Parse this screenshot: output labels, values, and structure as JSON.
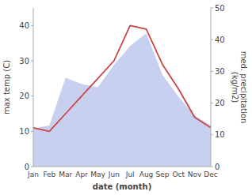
{
  "chart_data": {
    "type": "line",
    "categories": [
      "Jan",
      "Feb",
      "Mar",
      "Apr",
      "May",
      "Jun",
      "Jul",
      "Aug",
      "Sep",
      "Oct",
      "Nov",
      "Dec"
    ],
    "series": [
      {
        "type": "area",
        "axis": "y2",
        "color": "#c8d0f0",
        "values": [
          12,
          13,
          28,
          26,
          25,
          32,
          38,
          42,
          29,
          22,
          16,
          13
        ]
      },
      {
        "type": "line",
        "color": "#cc4444",
        "values": [
          11,
          10,
          15,
          20,
          25,
          30,
          40,
          39,
          29,
          22,
          14,
          11
        ]
      }
    ],
    "xlabel": "date (month)",
    "ylabel": "max temp (C)",
    "y2label": "med. precipitation\n(kg/m2)",
    "ylim": [
      0,
      45
    ],
    "yticks": [
      0,
      10,
      20,
      30,
      40
    ],
    "y2lim": [
      0,
      50
    ],
    "y2ticks": [
      0,
      10,
      20,
      30,
      40,
      50
    ],
    "grid": false
  }
}
